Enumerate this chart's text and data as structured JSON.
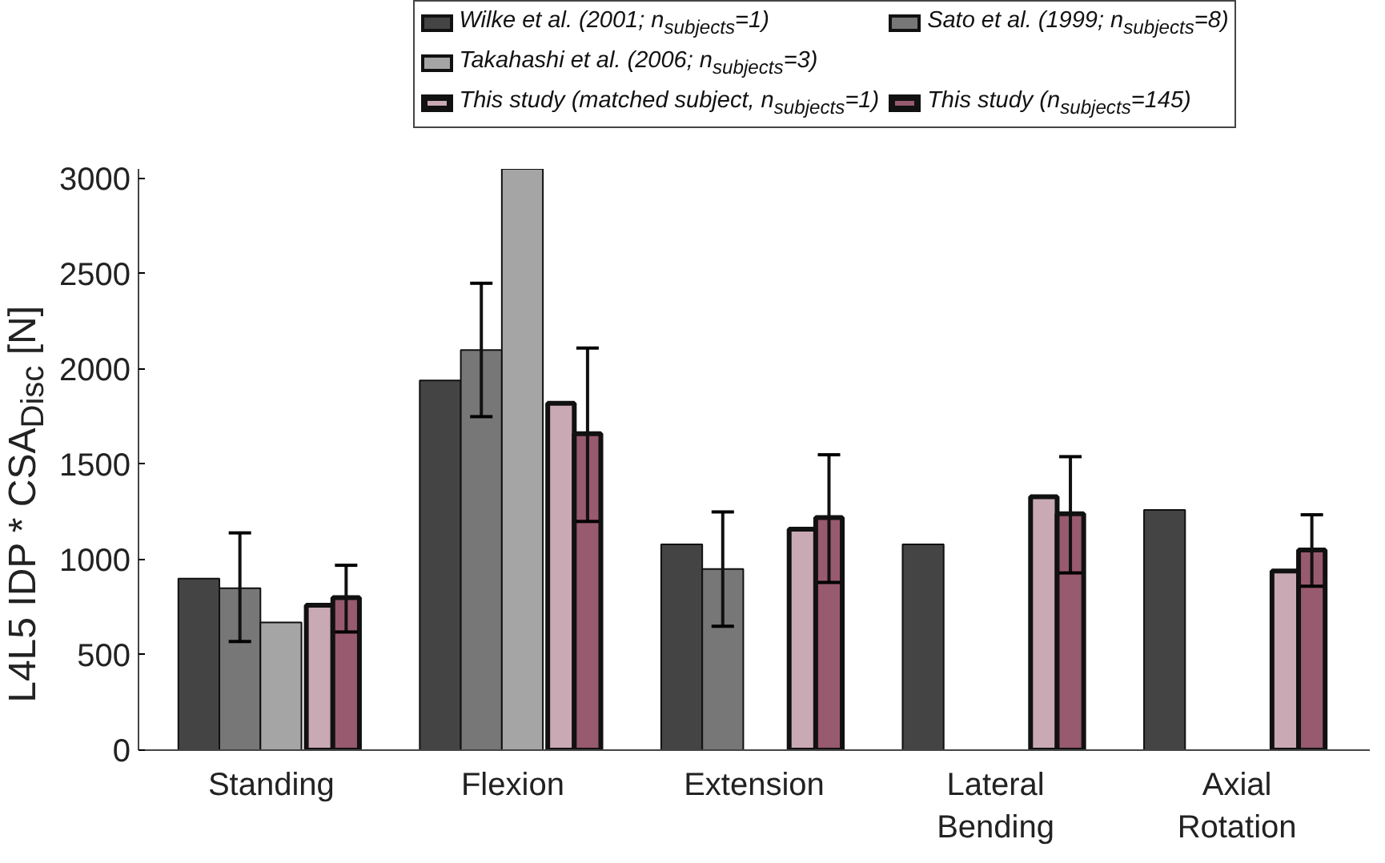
{
  "chart_data": {
    "type": "bar",
    "ylabel": "L4L5 IDP * CSA$_{Disc}$ [N]",
    "categories": [
      "Standing",
      "Flexion",
      "Extension",
      "Lateral\nBending",
      "Axial\nRotation"
    ],
    "series": [
      {
        "name": "Wilke et al. (2001; n$_{subjects}$=1)",
        "color": "#444444",
        "values": [
          900,
          1940,
          1080,
          1080,
          1260
        ]
      },
      {
        "name": "Sato et al. (1999; n$_{subjects}$=8)",
        "color": "#777777",
        "values": [
          850,
          2100,
          950,
          null,
          null
        ],
        "errors": [
          [
            570,
            1140
          ],
          [
            1750,
            2450
          ],
          [
            650,
            1250
          ],
          null,
          null
        ]
      },
      {
        "name": "Takahashi et al. (2006; n$_{subjects}$=3)",
        "color": "#a5a5a5",
        "values": [
          670,
          3050,
          null,
          null,
          null
        ]
      },
      {
        "name": "This study (matched subject, n$_{subjects}$=1)",
        "color": "#c9a9b4",
        "values": [
          760,
          1820,
          1160,
          1330,
          940
        ]
      },
      {
        "name": "This study (n$_{subjects}$=145)",
        "color": "#985a6e",
        "values": [
          800,
          1660,
          1220,
          1240,
          1050
        ],
        "errors": [
          [
            620,
            970
          ],
          [
            1200,
            2110
          ],
          [
            880,
            1550
          ],
          [
            930,
            1540
          ],
          [
            860,
            1235
          ]
        ]
      }
    ],
    "ylim": [
      0,
      3050
    ],
    "yticks": [
      0,
      500,
      1000,
      1500,
      2000,
      2500,
      3000
    ],
    "grid": false,
    "legend": "top"
  }
}
